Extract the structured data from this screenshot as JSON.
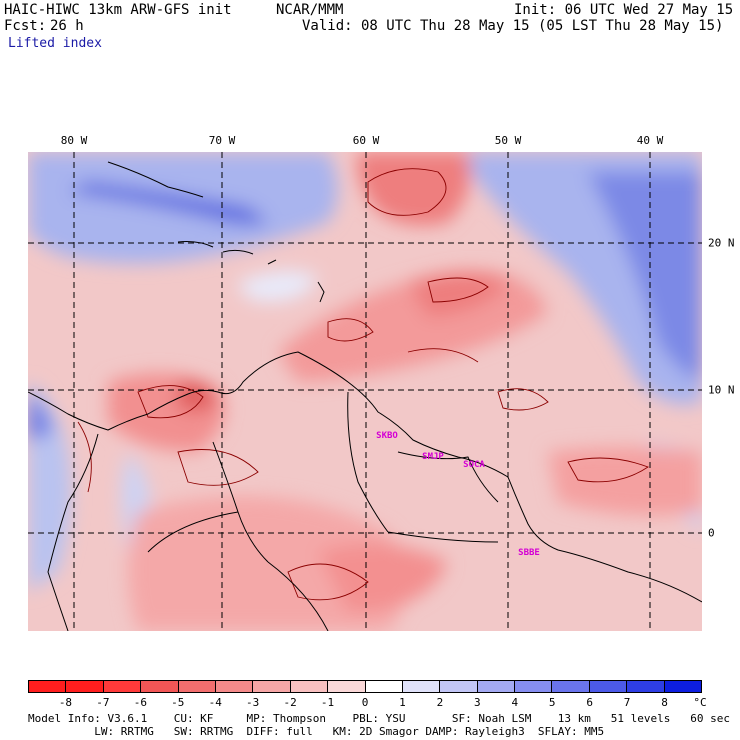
{
  "header": {
    "model": "HAIC-HIWC 13km ARW-GFS init",
    "org": "NCAR/MMM",
    "init": "Init: 06 UTC Wed 27 May 15",
    "fcst_label": "Fcst:",
    "fcst_value": "26 h",
    "valid": "Valid: 08 UTC Thu 28 May 15 (05 LST Thu 28 May 15)",
    "field": "Lifted index"
  },
  "map": {
    "lon_labels": [
      "80 W",
      "70 W",
      "60 W",
      "50 W",
      "40 W"
    ],
    "lat_labels": [
      "20 N",
      "10 N",
      "0"
    ],
    "stations": [
      "SKBO",
      "SMJP",
      "SOCA",
      "SBBE"
    ],
    "colors": {
      "background": "#f2c8c8",
      "warm_core": "#f28c8c",
      "strong_warm": "#e05a5a",
      "cool": "#b9c3f0",
      "strong_cool": "#6e7ee6",
      "coast": "#000000",
      "contour": "#8b0000"
    }
  },
  "colorbar": {
    "labels": [
      "-8",
      "-7",
      "-6",
      "-5",
      "-4",
      "-3",
      "-2",
      "-1",
      "0",
      "1",
      "2",
      "3",
      "4",
      "5",
      "6",
      "7",
      "8"
    ],
    "unit": "°C",
    "colors": [
      "#ff1e1e",
      "#ff3a3a",
      "#f25656",
      "#f26e6e",
      "#f48a8a",
      "#f6a6a6",
      "#f8c0c0",
      "#fad8d8",
      "#ffffff",
      "#e0e2fa",
      "#c2c6f6",
      "#a4aaf2",
      "#868ef0",
      "#6a74ec",
      "#4c5ae8",
      "#2e3ee4",
      "#0d1ee0"
    ]
  },
  "footer": {
    "line1": "Model Info: V3.6.1    CU: KF     MP: Thompson    PBL: YSU       SF: Noah LSM    13 km   51 levels   60 sec",
    "line2": "          LW: RRTMG   SW: RRTMG  DIFF: full   KM: 2D Smagor DAMP: Rayleigh3  SFLAY: MM5"
  }
}
